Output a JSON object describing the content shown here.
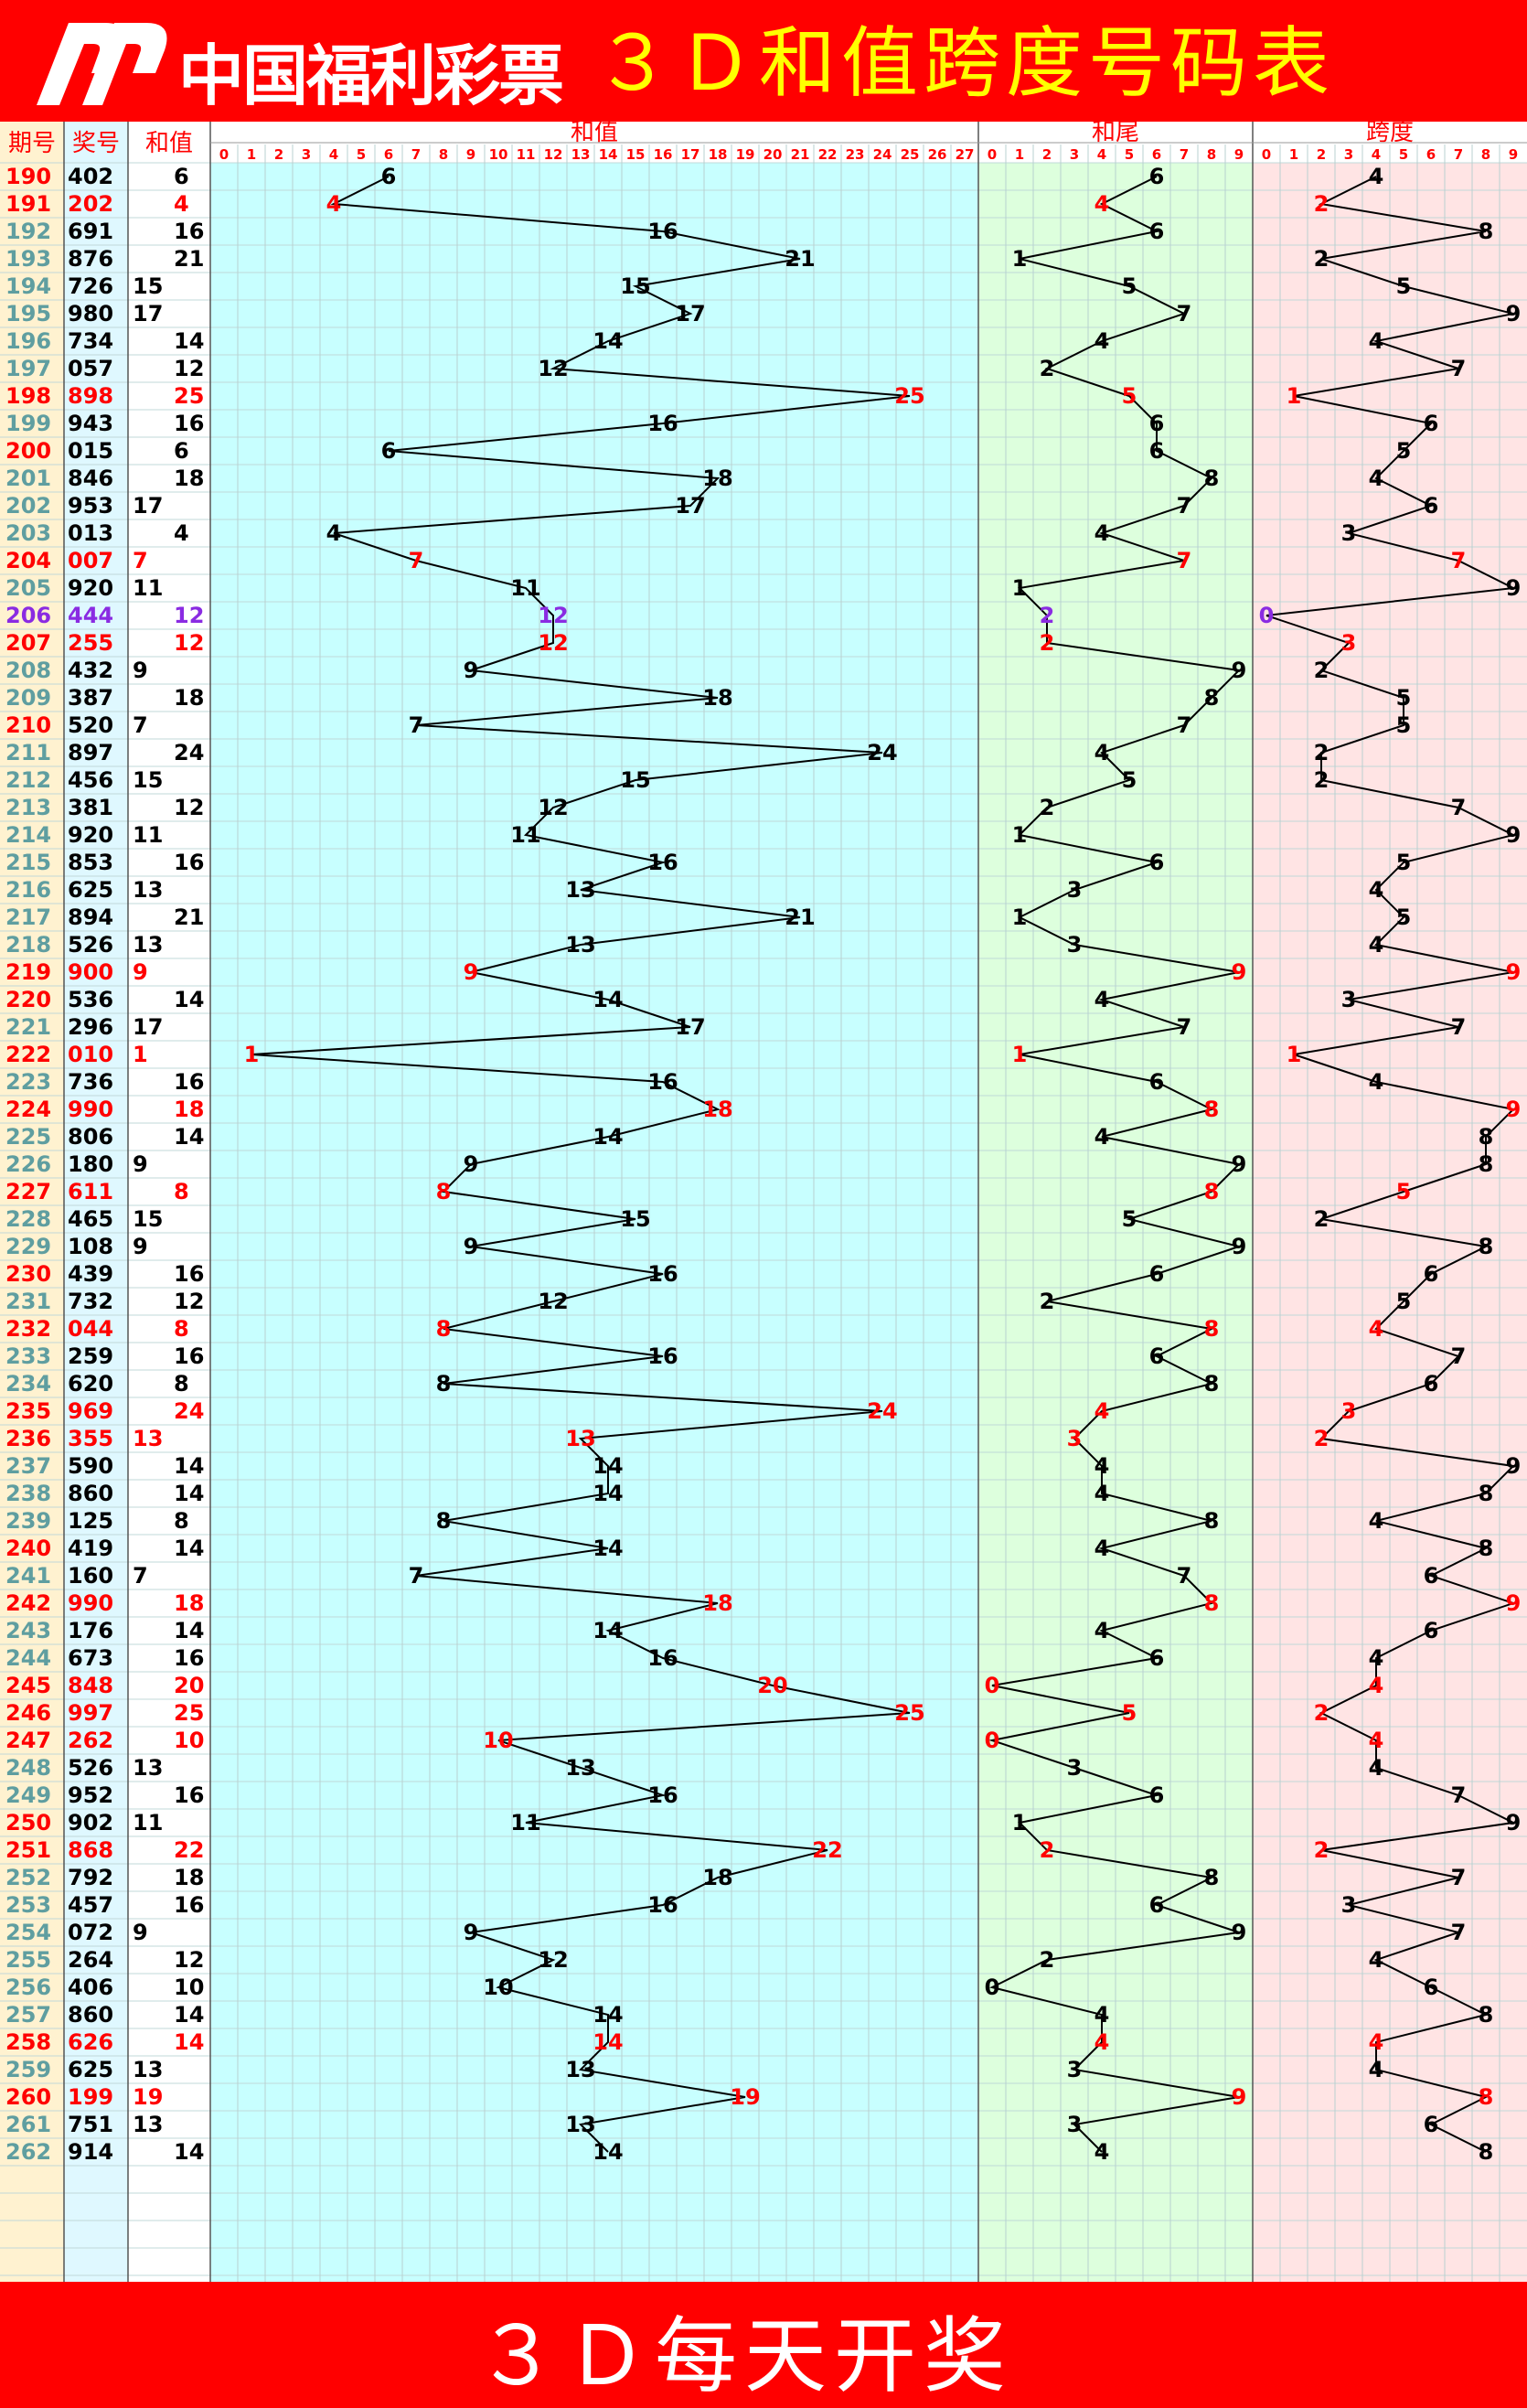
{
  "header": {
    "logo_text": "中国福利彩票",
    "title": "３Ｄ和值跨度号码表"
  },
  "footer": {
    "text": "３Ｄ每天开奖"
  },
  "colors": {
    "highlight": "#ff0000",
    "triple": "#8a2be2",
    "normal": "#000000",
    "issue_blue": "#5f9ea0"
  },
  "chart_data": {
    "type": "table",
    "columns": [
      "期号",
      "奖号",
      "和值"
    ],
    "sections": [
      {
        "name": "和值",
        "range": [
          0,
          27
        ],
        "background": "#c8ffff"
      },
      {
        "name": "和尾",
        "range": [
          0,
          9
        ],
        "background": "#ddffdd"
      },
      {
        "name": "跨度",
        "range": [
          0,
          9
        ],
        "background": "#ffe4e4"
      }
    ],
    "rows": [
      [
        "190",
        "402"
      ],
      [
        "191",
        "202"
      ],
      [
        "192",
        "691"
      ],
      [
        "193",
        "876"
      ],
      [
        "194",
        "726"
      ],
      [
        "195",
        "980"
      ],
      [
        "196",
        "734"
      ],
      [
        "197",
        "057"
      ],
      [
        "198",
        "898"
      ],
      [
        "199",
        "943"
      ],
      [
        "200",
        "015"
      ],
      [
        "201",
        "846"
      ],
      [
        "202",
        "953"
      ],
      [
        "203",
        "013"
      ],
      [
        "204",
        "007"
      ],
      [
        "205",
        "920"
      ],
      [
        "206",
        "444"
      ],
      [
        "207",
        "255"
      ],
      [
        "208",
        "432"
      ],
      [
        "209",
        "387"
      ],
      [
        "210",
        "520"
      ],
      [
        "211",
        "897"
      ],
      [
        "212",
        "456"
      ],
      [
        "213",
        "381"
      ],
      [
        "214",
        "920"
      ],
      [
        "215",
        "853"
      ],
      [
        "216",
        "625"
      ],
      [
        "217",
        "894"
      ],
      [
        "218",
        "526"
      ],
      [
        "219",
        "900"
      ],
      [
        "220",
        "536"
      ],
      [
        "221",
        "296"
      ],
      [
        "222",
        "010"
      ],
      [
        "223",
        "736"
      ],
      [
        "224",
        "990"
      ],
      [
        "225",
        "806"
      ],
      [
        "226",
        "180"
      ],
      [
        "227",
        "611"
      ],
      [
        "228",
        "465"
      ],
      [
        "229",
        "108"
      ],
      [
        "230",
        "439"
      ],
      [
        "231",
        "732"
      ],
      [
        "232",
        "044"
      ],
      [
        "233",
        "259"
      ],
      [
        "234",
        "620"
      ],
      [
        "235",
        "969"
      ],
      [
        "236",
        "355"
      ],
      [
        "237",
        "590"
      ],
      [
        "238",
        "860"
      ],
      [
        "239",
        "125"
      ],
      [
        "240",
        "419"
      ],
      [
        "241",
        "160"
      ],
      [
        "242",
        "990"
      ],
      [
        "243",
        "176"
      ],
      [
        "244",
        "673"
      ],
      [
        "245",
        "848"
      ],
      [
        "246",
        "997"
      ],
      [
        "247",
        "262"
      ],
      [
        "248",
        "526"
      ],
      [
        "249",
        "952"
      ],
      [
        "250",
        "902"
      ],
      [
        "251",
        "868"
      ],
      [
        "252",
        "792"
      ],
      [
        "253",
        "457"
      ],
      [
        "254",
        "072"
      ],
      [
        "255",
        "264"
      ],
      [
        "256",
        "406"
      ],
      [
        "257",
        "860"
      ],
      [
        "258",
        "626"
      ],
      [
        "259",
        "625"
      ],
      [
        "260",
        "199"
      ],
      [
        "261",
        "751"
      ],
      [
        "262",
        "914"
      ]
    ]
  }
}
